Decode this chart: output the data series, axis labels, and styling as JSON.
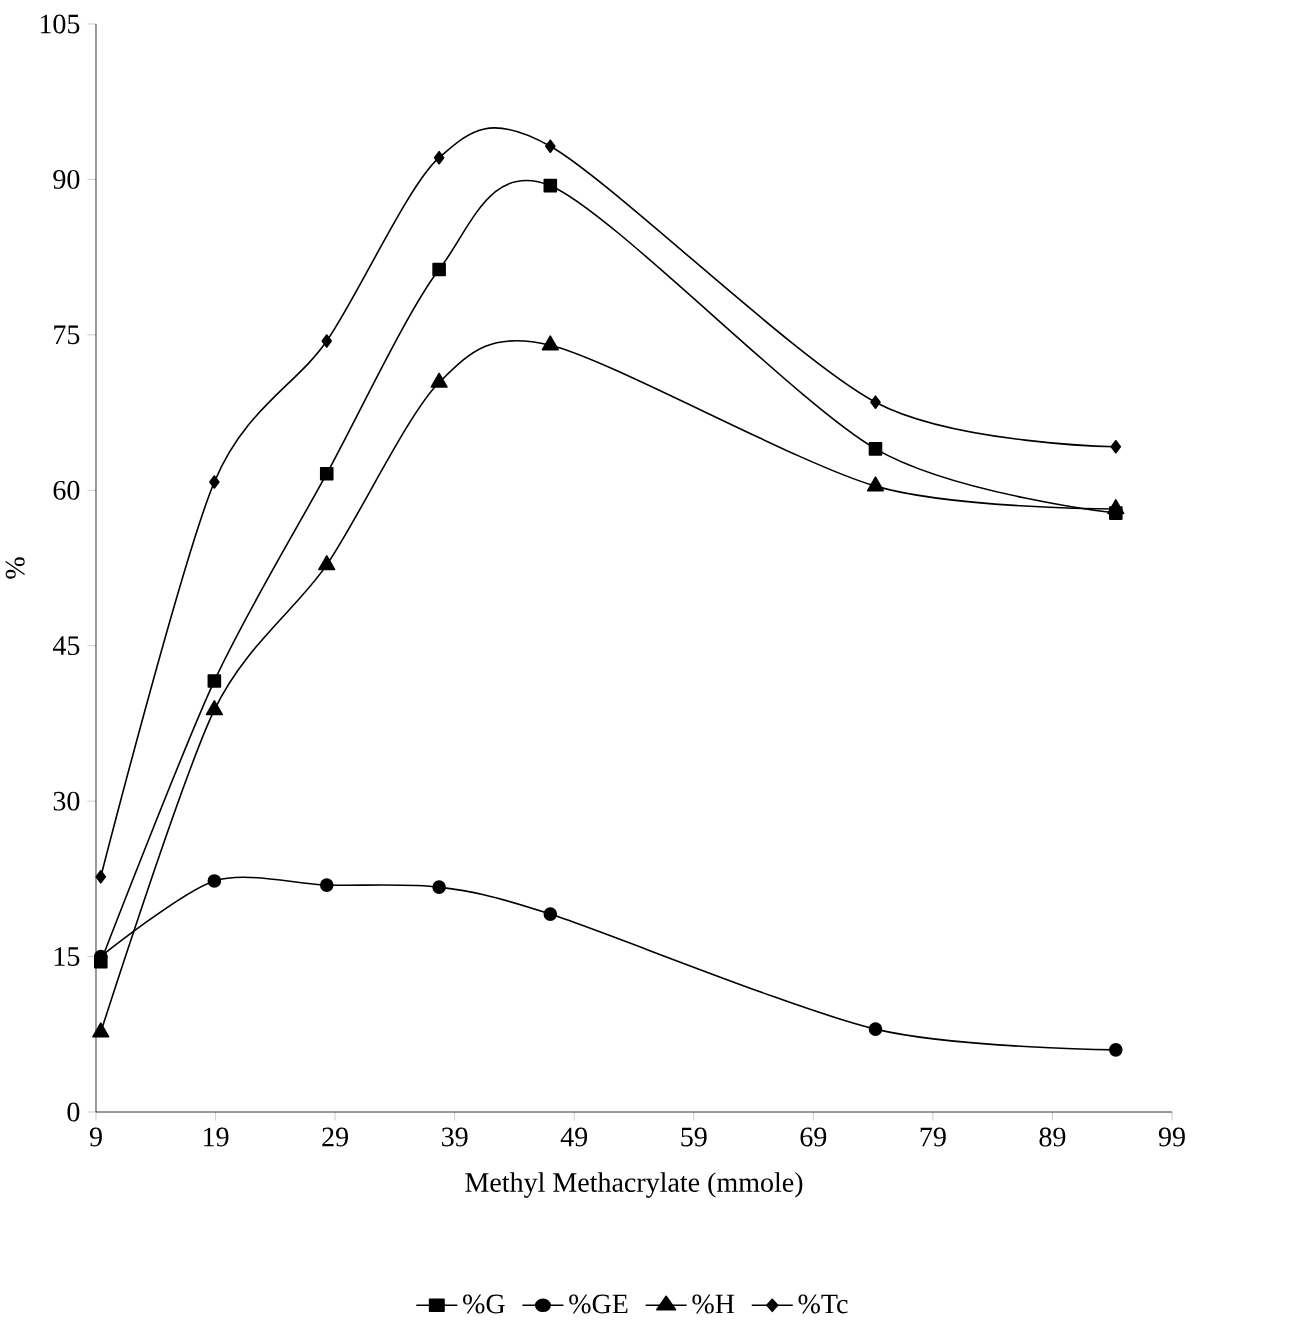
{
  "chart_data": {
    "type": "line",
    "xlabel": "Methyl Methacrylate (mmole)",
    "ylabel": "%",
    "x": [
      9.4,
      18.9,
      28.3,
      37.7,
      47,
      74.2,
      94.3
    ],
    "series": [
      {
        "name": "%G",
        "color": "#000000",
        "marker": "square",
        "values": [
          14.5,
          41.6,
          61.6,
          81.3,
          89.4,
          64.0,
          57.8
        ]
      },
      {
        "name": "%GE",
        "color": "#000000",
        "marker": "circle",
        "values": [
          15.0,
          22.3,
          21.9,
          21.7,
          19.1,
          8.0,
          6.0
        ]
      },
      {
        "name": "%H",
        "color": "#000000",
        "marker": "triangle",
        "values": [
          7.7,
          38.8,
          52.8,
          70.4,
          74.0,
          60.4,
          58.2
        ]
      },
      {
        "name": "%Tc",
        "color": "#000000",
        "marker": "diamond",
        "values": [
          22.7,
          60.8,
          74.4,
          92.1,
          93.2,
          68.5,
          64.2
        ]
      }
    ],
    "xlim": [
      9,
      99
    ],
    "xticks": [
      9,
      19,
      29,
      39,
      49,
      59,
      69,
      79,
      89,
      99
    ],
    "ylim": [
      0,
      105
    ],
    "yticks": [
      0,
      15,
      30,
      45,
      60,
      75,
      90,
      105
    ],
    "grid": false,
    "legend": "bottom",
    "line_style": "solid"
  }
}
